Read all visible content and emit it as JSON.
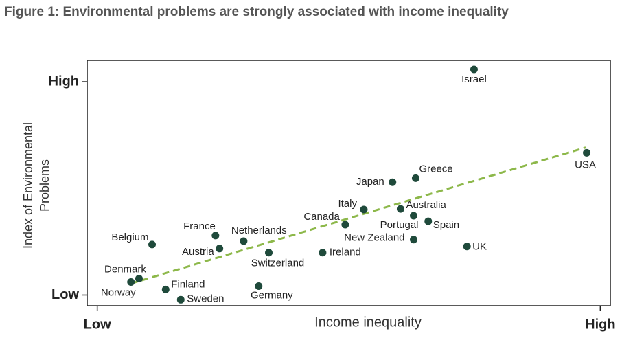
{
  "chart_data": {
    "type": "scatter",
    "title": "Figure 1: Environmental problems are strongly associated with income inequality",
    "xlabel": "Income inequality",
    "ylabel": [
      "Index of Environmental",
      "Problems"
    ],
    "xlim": [
      -0.2,
      10.2
    ],
    "ylim": [
      -0.5,
      11
    ],
    "xticks": [
      {
        "value": 0,
        "label": "Low"
      },
      {
        "value": 10,
        "label": "High"
      }
    ],
    "yticks": [
      {
        "value": 0,
        "label": "Low"
      },
      {
        "value": 10,
        "label": "High"
      }
    ],
    "color": "#1f4a3b",
    "trendline": {
      "x": [
        0.67,
        9.71
      ],
      "y": [
        0.54,
        6.92
      ],
      "color": "#8db84a"
    },
    "points": [
      {
        "name": "Israel",
        "x": 7.49,
        "y": 10.58
      },
      {
        "name": "USA",
        "x": 9.73,
        "y": 6.67
      },
      {
        "name": "Greece",
        "x": 6.33,
        "y": 5.48
      },
      {
        "name": "Japan",
        "x": 5.87,
        "y": 5.29
      },
      {
        "name": "Italy",
        "x": 5.3,
        "y": 4.01
      },
      {
        "name": "Australia",
        "x": 6.03,
        "y": 4.04
      },
      {
        "name": "Portugal",
        "x": 6.29,
        "y": 3.72
      },
      {
        "name": "Spain",
        "x": 6.58,
        "y": 3.46
      },
      {
        "name": "Canada",
        "x": 4.93,
        "y": 3.3
      },
      {
        "name": "New Zealand",
        "x": 6.29,
        "y": 2.6
      },
      {
        "name": "UK",
        "x": 7.35,
        "y": 2.28
      },
      {
        "name": "France",
        "x": 2.35,
        "y": 2.79
      },
      {
        "name": "Netherlands",
        "x": 2.91,
        "y": 2.53
      },
      {
        "name": "Belgium",
        "x": 1.09,
        "y": 2.37
      },
      {
        "name": "Austria",
        "x": 2.43,
        "y": 2.18
      },
      {
        "name": "Switzerland",
        "x": 3.41,
        "y": 1.99
      },
      {
        "name": "Ireland",
        "x": 4.48,
        "y": 1.99
      },
      {
        "name": "Denmark",
        "x": 0.83,
        "y": 0.77
      },
      {
        "name": "Norway",
        "x": 0.67,
        "y": 0.61
      },
      {
        "name": "Finland",
        "x": 1.36,
        "y": 0.26
      },
      {
        "name": "Germany",
        "x": 3.21,
        "y": 0.42
      },
      {
        "name": "Sweden",
        "x": 1.66,
        "y": -0.22
      }
    ]
  }
}
